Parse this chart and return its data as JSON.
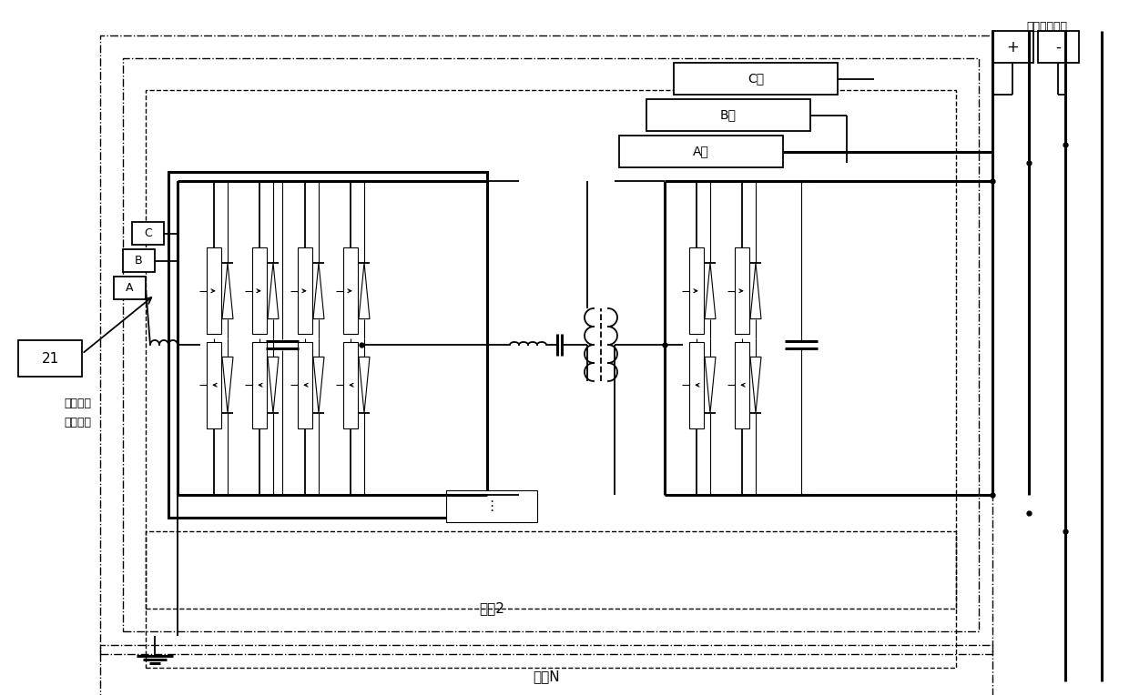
{
  "bg_color": "#ffffff",
  "label_21": "21",
  "label_mid_high": "中、高压\n交流端口",
  "label_low_dc": "低压直流端口",
  "label_plus": "+",
  "label_minus": "-",
  "label_A": "A",
  "label_B": "B",
  "label_C": "C",
  "label_A_phase": "A相",
  "label_B_phase": "B相",
  "label_C_phase": "C相",
  "label_mod2": "模祆2",
  "label_modn": "模组N",
  "figsize": [
    12.4,
    7.64
  ],
  "dpi": 100
}
